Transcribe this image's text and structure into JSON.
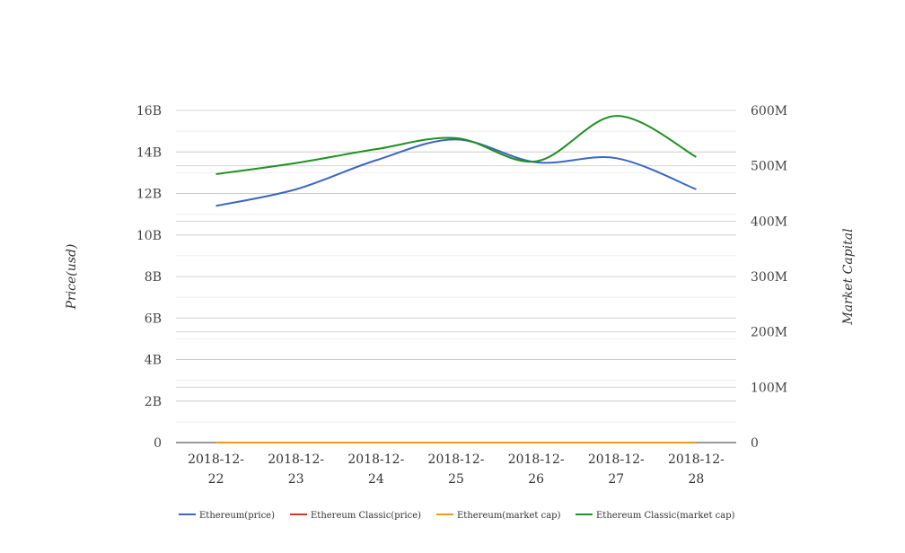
{
  "chart_data": {
    "type": "line",
    "categories": [
      "2018-12-22",
      "2018-12-23",
      "2018-12-24",
      "2018-12-25",
      "2018-12-26",
      "2018-12-27",
      "2018-12-28"
    ],
    "category_labels": [
      [
        "2018-12-",
        "22"
      ],
      [
        "2018-12-",
        "23"
      ],
      [
        "2018-12-",
        "24"
      ],
      [
        "2018-12-",
        "25"
      ],
      [
        "2018-12-",
        "26"
      ],
      [
        "2018-12-",
        "27"
      ],
      [
        "2018-12-",
        "28"
      ]
    ],
    "ylabel_left": "Price(usd)",
    "ylabel_right": "Market Capital",
    "y_left": {
      "min": 0,
      "max": 16000000000,
      "ticks": [
        0,
        2000000000,
        4000000000,
        6000000000,
        8000000000,
        10000000000,
        12000000000,
        14000000000,
        16000000000
      ],
      "tick_labels": [
        "0",
        "2B",
        "4B",
        "6B",
        "8B",
        "10B",
        "12B",
        "14B",
        "16B"
      ]
    },
    "y_right": {
      "min": 0,
      "max": 600000000,
      "ticks": [
        0,
        100000000,
        200000000,
        300000000,
        400000000,
        500000000,
        600000000
      ],
      "tick_labels": [
        "0",
        "100M",
        "200M",
        "300M",
        "400M",
        "500M",
        "600M"
      ]
    },
    "grid": true,
    "legend_position": "bottom",
    "series": [
      {
        "name": "Ethereum(price)",
        "axis": "left",
        "color": "#3b66c4",
        "values": [
          11400000000,
          12200000000,
          13600000000,
          14600000000,
          13500000000,
          13700000000,
          12200000000
        ]
      },
      {
        "name": "Ethereum Classic(price)",
        "axis": "left",
        "color": "#d0391d",
        "values": [
          4.3,
          4.5,
          5.1,
          4.9,
          4.6,
          5.1,
          4.9
        ]
      },
      {
        "name": "Ethereum(market cap)",
        "axis": "left",
        "color": "#f29a16",
        "values": [
          120,
          125,
          140,
          135,
          131,
          140,
          130
        ]
      },
      {
        "name": "Ethereum Classic(market cap)",
        "axis": "right",
        "color": "#1e9122",
        "values": [
          485000000,
          505000000,
          530000000,
          550000000,
          508000000,
          590000000,
          516000000
        ]
      }
    ]
  }
}
